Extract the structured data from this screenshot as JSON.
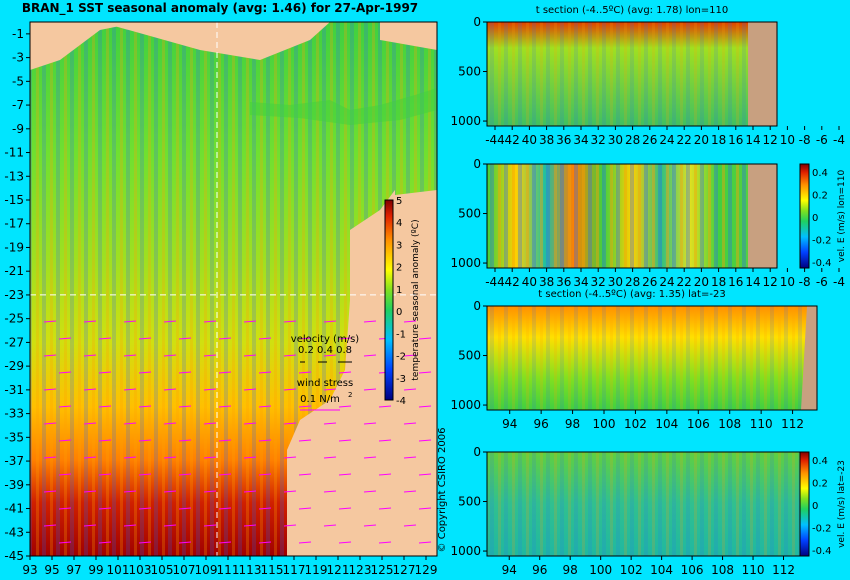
{
  "colors": {
    "background": "#00e5ff",
    "land_map": "#f5c8a0",
    "land_section": "#c8a080",
    "vector": "#ff00ff"
  },
  "map": {
    "title": "BRAN_1  SST seasonal anomaly  (avg: 1.46)  for 27-Apr-1997",
    "lon_ticks": [
      "93",
      "95",
      "97",
      "99",
      "101",
      "103",
      "105",
      "107",
      "109",
      "111",
      "113",
      "115",
      "117",
      "119",
      "121",
      "123",
      "125",
      "127",
      "129"
    ],
    "lat_ticks": [
      "-1",
      "-3",
      "-5",
      "-7",
      "-9",
      "-11",
      "-13",
      "-15",
      "-17",
      "-19",
      "-21",
      "-23",
      "-25",
      "-27",
      "-29",
      "-31",
      "-33",
      "-35",
      "-37",
      "-39",
      "-41",
      "-43",
      "-45"
    ],
    "velocity_label": "velocity (m/s)",
    "velocity_scale": "0.2 0.4 0.8",
    "wind_label": "wind stress",
    "wind_scale": "0.1 N/m",
    "wind_unit_sup": "2",
    "copyright": "© Copyright CSIRO 2006",
    "crosshair_lon": 110,
    "crosshair_lat": -23
  },
  "colorbar_temp": {
    "label": "temperature seasonal anomaly (ºC)",
    "ticks": [
      "5",
      "4",
      "3",
      "2",
      "1",
      "0",
      "-1",
      "-2",
      "-3",
      "-4"
    ]
  },
  "panels": [
    {
      "title": "t section (-4..5ºC)  (avg: 1.78)  lon=110",
      "x_ticks": [
        "-44",
        "42",
        "40",
        "38",
        "36",
        "34",
        "32",
        "30",
        "28",
        "26",
        "24",
        "22",
        "20",
        "18",
        "16",
        "14",
        "12",
        "10",
        "-8",
        "-6",
        "-4"
      ],
      "y_ticks": [
        "0",
        "500",
        "1000"
      ]
    },
    {
      "title": "",
      "x_ticks": [
        "-44",
        "42",
        "40",
        "38",
        "36",
        "34",
        "32",
        "30",
        "28",
        "26",
        "24",
        "22",
        "20",
        "18",
        "16",
        "14",
        "12",
        "10",
        "-8",
        "-6",
        "-4"
      ],
      "y_ticks": [
        "0",
        "500",
        "1000"
      ],
      "colorbar_label": "vel. E (m/s)  lon=110",
      "colorbar_ticks": [
        "0.4",
        "0.2",
        "0",
        "-0.2",
        "-0.4"
      ]
    },
    {
      "title": "t section (-4..5ºC)  (avg: 1.35)  lat=-23",
      "x_ticks": [
        "94",
        "96",
        "98",
        "100",
        "102",
        "104",
        "106",
        "108",
        "110",
        "112"
      ],
      "y_ticks": [
        "0",
        "500",
        "1000"
      ]
    },
    {
      "title": "",
      "x_ticks": [
        "94",
        "96",
        "98",
        "100",
        "102",
        "104",
        "106",
        "108",
        "110",
        "112"
      ],
      "y_ticks": [
        "0",
        "500",
        "1000"
      ],
      "colorbar_label": "vel. E (m/s)  lat=-23",
      "colorbar_ticks": [
        "0.4",
        "0.2",
        "0",
        "-0.2",
        "-0.4"
      ]
    }
  ],
  "chart_data": [
    {
      "type": "heatmap",
      "title": "BRAN_1  SST seasonal anomaly  (avg: 1.46)  for 27-Apr-1997",
      "xlim": [
        93,
        130
      ],
      "ylim": [
        -45,
        0
      ],
      "colorbar": {
        "min": -4,
        "max": 5,
        "label": "temperature seasonal anomaly (ºC)"
      }
    },
    {
      "type": "heatmap",
      "title": "t section (-4..5ºC)  (avg: 1.78)  lon=110",
      "xlim": [
        -45,
        -3
      ],
      "ylim": [
        1050,
        0
      ]
    },
    {
      "type": "heatmap",
      "xlim": [
        -45,
        -3
      ],
      "ylim": [
        1050,
        0
      ],
      "colorbar": {
        "min": -0.4,
        "max": 0.45,
        "label": "vel. E (m/s)  lon=110"
      }
    },
    {
      "type": "heatmap",
      "title": "t section (-4..5ºC)  (avg: 1.35)  lat=-23",
      "xlim": [
        93,
        114
      ],
      "ylim": [
        1050,
        0
      ]
    },
    {
      "type": "heatmap",
      "xlim": [
        93,
        114
      ],
      "ylim": [
        1050,
        0
      ],
      "colorbar": {
        "min": -0.4,
        "max": 0.45,
        "label": "vel. E (m/s)  lat=-23"
      }
    }
  ]
}
